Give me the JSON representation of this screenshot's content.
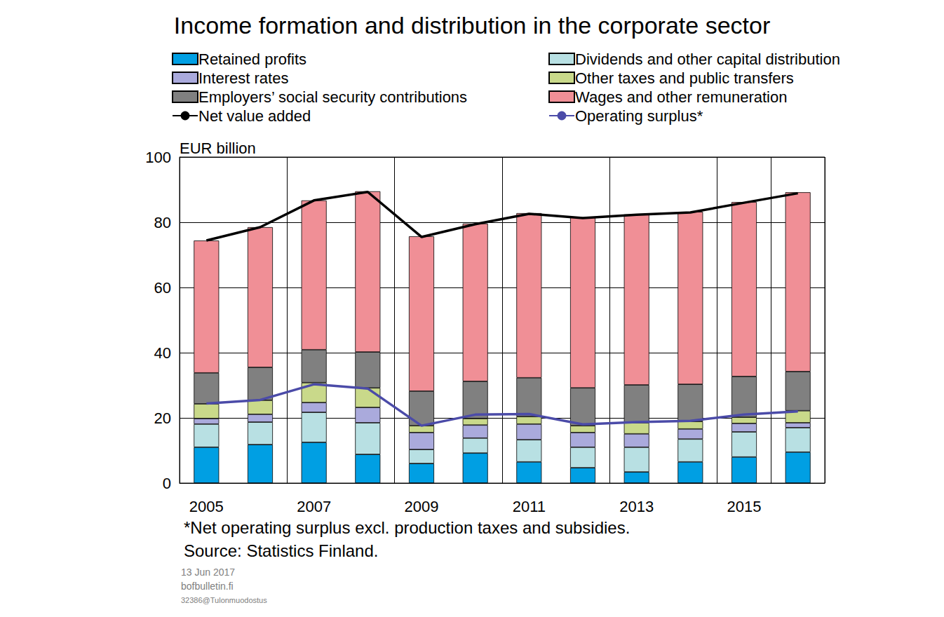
{
  "chart_data": {
    "type": "bar",
    "title": "Income formation and distribution in the corporate sector",
    "ylabel": "EUR billion",
    "categories": [
      "2005",
      null,
      "2007",
      null,
      "2009",
      null,
      "2011",
      null,
      "2013",
      null,
      "2015",
      null
    ],
    "series": [
      {
        "name": "Retained profits",
        "color": "#009fe3",
        "values": [
          11.0,
          11.8,
          12.5,
          8.8,
          6.0,
          9.2,
          6.5,
          4.7,
          3.4,
          6.5,
          8.0,
          9.5
        ]
      },
      {
        "name": "Dividends and other capital distribution",
        "color": "#b8e0e3",
        "values": [
          7.1,
          6.9,
          9.2,
          9.7,
          4.3,
          4.6,
          6.8,
          6.3,
          7.6,
          7.0,
          7.7,
          7.5
        ]
      },
      {
        "name": "Interest rates",
        "color": "#aaaadc",
        "values": [
          1.7,
          2.4,
          3.0,
          4.7,
          5.2,
          4.0,
          4.8,
          4.5,
          4.1,
          3.1,
          2.6,
          1.5
        ]
      },
      {
        "name": "Other taxes and public transfers",
        "color": "#c9d98a",
        "values": [
          4.5,
          4.3,
          6.1,
          6.0,
          2.1,
          2.0,
          2.3,
          2.1,
          3.4,
          2.3,
          1.9,
          3.7
        ]
      },
      {
        "name": "Employers’ social security contributions",
        "color": "#808080",
        "values": [
          9.5,
          10.1,
          10.1,
          11.0,
          10.6,
          11.4,
          11.9,
          11.6,
          11.6,
          11.4,
          12.5,
          12.0
        ]
      },
      {
        "name": "Wages and other remuneration",
        "color": "#f08f96",
        "values": [
          40.6,
          43.0,
          45.8,
          49.3,
          47.5,
          48.4,
          50.5,
          52.3,
          52.3,
          52.9,
          53.5,
          55.0
        ]
      },
      {
        "name": "Net value added",
        "type": "line",
        "color": "#000000",
        "values": [
          74.4,
          78.5,
          86.7,
          89.3,
          75.5,
          79.4,
          82.6,
          81.3,
          82.3,
          83.0,
          86.0,
          88.9
        ]
      },
      {
        "name": "Operating surplus*",
        "type": "line",
        "color": "#4b4ba8",
        "values": [
          24.4,
          25.5,
          30.3,
          29.0,
          17.6,
          21.0,
          21.2,
          18.0,
          18.7,
          19.1,
          21.0,
          22.0
        ]
      }
    ],
    "ylim": [
      0,
      100
    ],
    "yticks": [
      0,
      20,
      40,
      60,
      80,
      100
    ],
    "grid": true,
    "stacked": true,
    "legend": "top",
    "notes": [
      "*Net operating surplus excl. production taxes and subsidies.",
      "Source: Statistics Finland."
    ],
    "footer": [
      "13 Jun 2017",
      "bofbulletin.fi",
      "32386@Tulonmuodostus"
    ]
  }
}
